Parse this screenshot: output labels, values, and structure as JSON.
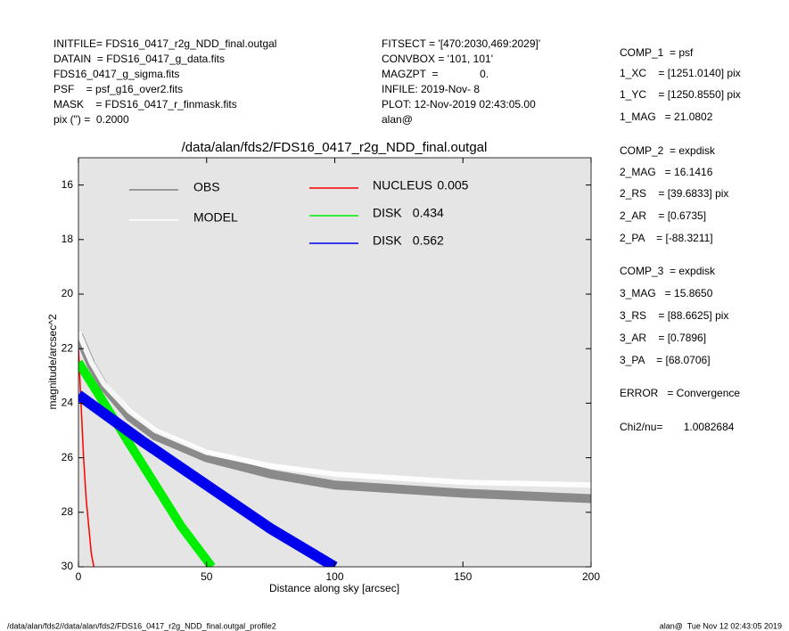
{
  "info_left": [
    "INITFILE= FDS16_0417_r2g_NDD_final.outgal",
    "DATAIN  = FDS16_0417_g_data.fits",
    "FDS16_0417_g_sigma.fits",
    "PSF    = psf_g16_over2.fits",
    "MASK    = FDS16_0417_r_finmask.fits",
    "pix (\") =  0.2000"
  ],
  "info_mid": [
    "FITSECT = '[470:2030,469:2029]'",
    "CONVBOX = '101, 101'",
    "MAGZPT  =              0.",
    "INFILE: 2019-Nov- 8",
    "PLOT: 12-Nov-2019 02:43:05.00",
    "alan@"
  ],
  "info_right": [
    "COMP_1  = psf",
    "1_XC    = [1251.0140] pix",
    "1_YC    = [1250.8550] pix",
    "1_MAG   = 21.0802",
    "COMP_2  = expdisk",
    "2_MAG   = 16.1416",
    "2_RS    = [39.6833] pix",
    "2_AR    = [0.6735]",
    "2_PA    = [-88.3211]",
    "COMP_3  = expdisk",
    "3_MAG   = 15.8650",
    "3_RS    = [88.6625] pix",
    "3_AR    = [0.7896]",
    "3_PA    = [68.0706]",
    "ERROR   = Convergence",
    "Chi2/nu=       1.0082684"
  ],
  "footer_left": "/data/alan/fds2//data/alan/fds2/FDS16_0417_r2g_NDD_final.outgal_profile2",
  "footer_right": "alan@  Tue Nov 12 02:43:05 2019",
  "chart_data": {
    "type": "line",
    "title": "/data/alan/fds2/FDS16_0417_r2g_NDD_final.outgal",
    "xlabel": "Distance along sky [arcsec]",
    "ylabel": "magnitude/arcsec^2",
    "xlim": [
      0,
      200
    ],
    "ylim": [
      15,
      30
    ],
    "y_inverted": true,
    "xticks": [
      0,
      50,
      100,
      150,
      200
    ],
    "yticks": [
      16,
      18,
      20,
      22,
      24,
      26,
      28,
      30
    ],
    "series": [
      {
        "name": "OBS",
        "color": "#808080",
        "x": [
          0,
          5,
          10,
          20,
          30,
          50,
          75,
          100,
          150,
          200
        ],
        "values": [
          21.5,
          22.6,
          23.4,
          24.5,
          25.2,
          26,
          26.6,
          27,
          27.3,
          27.5
        ]
      },
      {
        "name": "MODEL",
        "color": "#ffffff",
        "x": [
          0,
          5,
          10,
          20,
          30,
          50,
          75,
          100,
          150,
          200
        ],
        "values": [
          21.4,
          22.5,
          23.3,
          24.3,
          25,
          25.8,
          26.3,
          26.6,
          26.9,
          27
        ]
      },
      {
        "name": "NUCLEUS",
        "fraction": 0.005,
        "color": "#ff0000",
        "x": [
          0,
          1,
          2,
          3,
          4,
          5,
          6
        ],
        "values": [
          22,
          24,
          26,
          27.5,
          28.5,
          29.5,
          30
        ]
      },
      {
        "name": "DISK",
        "fraction": 0.434,
        "color": "#00ee00",
        "x": [
          0,
          10,
          20,
          30,
          40,
          52
        ],
        "values": [
          22.5,
          24,
          25.5,
          27,
          28.5,
          30
        ]
      },
      {
        "name": "DISK",
        "fraction": 0.562,
        "color": "#0000ee",
        "x": [
          0,
          25,
          50,
          75,
          100
        ],
        "values": [
          23.7,
          25.4,
          27,
          28.6,
          30
        ]
      }
    ]
  }
}
